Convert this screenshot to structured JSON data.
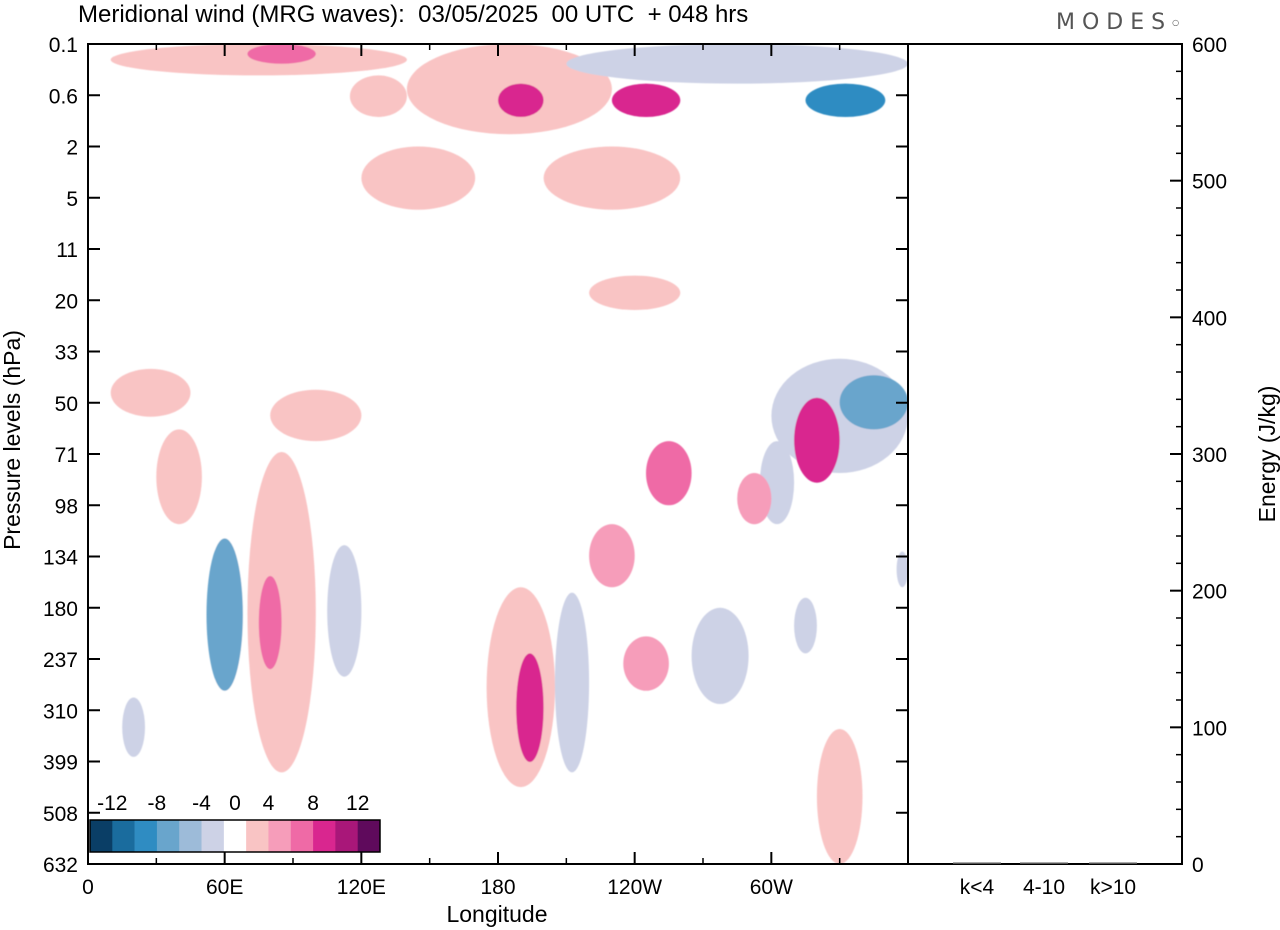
{
  "title": "Meridional wind (MRG waves):  03/05/2025  00 UTC  + 048 hrs",
  "logo": "MODES",
  "chart_data": [
    {
      "type": "heatmap",
      "title": "Meridional wind (MRG waves):  03/05/2025  00 UTC  + 048 hrs",
      "xlabel": "Longitude",
      "ylabel": "Pressure levels (hPa)",
      "x_ticks": [
        "0",
        "60E",
        "120E",
        "180",
        "120W",
        "60W"
      ],
      "x_tick_values": [
        0,
        60,
        120,
        180,
        240,
        300
      ],
      "xlim": [
        0,
        360
      ],
      "y_ticks": [
        "0.1",
        "0.6",
        "2",
        "5",
        "11",
        "20",
        "33",
        "50",
        "71",
        "98",
        "134",
        "180",
        "237",
        "310",
        "399",
        "508",
        "632"
      ],
      "y_axis": "pressure levels, top 0.1 hPa to bottom 632 hPa (levels equally spaced)",
      "colorbar": {
        "labels": [
          "-12",
          "-8",
          "-4",
          "0",
          "4",
          "8",
          "12"
        ],
        "label_values": [
          -12,
          -8,
          -4,
          0,
          4,
          8,
          12
        ],
        "boundaries": [
          -14,
          -12,
          -10,
          -8,
          -6,
          -4,
          -2,
          2,
          4,
          6,
          8,
          10,
          12,
          14
        ],
        "colors": [
          "#0a3e66",
          "#1a6c9e",
          "#2f8cc2",
          "#69a5cc",
          "#9dbbd9",
          "#cdd2e6",
          "#ffffff",
          "#f9c4c4",
          "#f69dba",
          "#ef6aa6",
          "#d9268f",
          "#a91779",
          "#5f0a5c"
        ]
      },
      "contour_regions": [
        {
          "sign": "positive",
          "level": 2,
          "lon": [
            10,
            140
          ],
          "lev": [
            0.1,
            0.3
          ]
        },
        {
          "sign": "positive",
          "level": 6,
          "lon": [
            70,
            100
          ],
          "lev": [
            0.1,
            0.2
          ]
        },
        {
          "sign": "positive",
          "level": 2,
          "lon": [
            115,
            140
          ],
          "lev": [
            0.3,
            1
          ]
        },
        {
          "sign": "positive",
          "level": 2,
          "lon": [
            140,
            230
          ],
          "lev": [
            0.1,
            1.5
          ]
        },
        {
          "sign": "positive",
          "level": 8,
          "lon": [
            180,
            200
          ],
          "lev": [
            0.4,
            1
          ]
        },
        {
          "sign": "positive",
          "level": 8,
          "lon": [
            230,
            260
          ],
          "lev": [
            0.4,
            1
          ]
        },
        {
          "sign": "positive",
          "level": 2,
          "lon": [
            120,
            170
          ],
          "lev": [
            2,
            6
          ]
        },
        {
          "sign": "positive",
          "level": 2,
          "lon": [
            200,
            260
          ],
          "lev": [
            2,
            6
          ]
        },
        {
          "sign": "negative",
          "level": -4,
          "lon": [
            210,
            360
          ],
          "lev": [
            0.1,
            0.4
          ]
        },
        {
          "sign": "negative",
          "level": -10,
          "lon": [
            315,
            350
          ],
          "lev": [
            0.4,
            1
          ]
        },
        {
          "sign": "negative",
          "level": -2,
          "lon": [
            48,
            85
          ],
          "lev": [
            0.5,
            2
          ]
        },
        {
          "sign": "negative",
          "level": -2,
          "lon": [
            290,
            360
          ],
          "lev": [
            1.5,
            5
          ]
        },
        {
          "sign": "negative",
          "level": -2,
          "lon": [
            25,
            55
          ],
          "lev": [
            4,
            8
          ]
        },
        {
          "sign": "negative",
          "level": -2,
          "lon": [
            105,
            125
          ],
          "lev": [
            7,
            13
          ]
        },
        {
          "sign": "positive",
          "level": 2,
          "lon": [
            220,
            260
          ],
          "lev": [
            15,
            22
          ]
        },
        {
          "sign": "negative",
          "level": -2,
          "lon": [
            160,
            180
          ],
          "lev": [
            18,
            24
          ]
        },
        {
          "sign": "negative",
          "level": -4,
          "lon": [
            300,
            360
          ],
          "lev": [
            35,
            80
          ]
        },
        {
          "sign": "negative",
          "level": -8,
          "lon": [
            330,
            360
          ],
          "lev": [
            40,
            60
          ]
        },
        {
          "sign": "positive",
          "level": 2,
          "lon": [
            10,
            45
          ],
          "lev": [
            38,
            55
          ]
        },
        {
          "sign": "positive",
          "level": 2,
          "lon": [
            80,
            120
          ],
          "lev": [
            45,
            65
          ]
        },
        {
          "sign": "positive",
          "level": 8,
          "lon": [
            310,
            330
          ],
          "lev": [
            48,
            85
          ]
        },
        {
          "sign": "positive",
          "level": 2,
          "lon": [
            30,
            50
          ],
          "lev": [
            60,
            110
          ]
        },
        {
          "sign": "negative",
          "level": -2,
          "lon": [
            55,
            70
          ],
          "lev": [
            60,
            450
          ]
        },
        {
          "sign": "negative",
          "level": -8,
          "lon": [
            52,
            68
          ],
          "lev": [
            120,
            280
          ]
        },
        {
          "sign": "positive",
          "level": 2,
          "lon": [
            70,
            100
          ],
          "lev": [
            70,
            420
          ]
        },
        {
          "sign": "positive",
          "level": 6,
          "lon": [
            75,
            85
          ],
          "lev": [
            150,
            250
          ]
        },
        {
          "sign": "negative",
          "level": -4,
          "lon": [
            105,
            120
          ],
          "lev": [
            125,
            260
          ]
        },
        {
          "sign": "negative",
          "level": -2,
          "lon": [
            125,
            150
          ],
          "lev": [
            70,
            95
          ]
        },
        {
          "sign": "positive",
          "level": 2,
          "lon": [
            175,
            205
          ],
          "lev": [
            160,
            450
          ]
        },
        {
          "sign": "positive",
          "level": 8,
          "lon": [
            188,
            200
          ],
          "lev": [
            230,
            400
          ]
        },
        {
          "sign": "negative",
          "level": -4,
          "lon": [
            205,
            220
          ],
          "lev": [
            165,
            420
          ]
        },
        {
          "sign": "positive",
          "level": 4,
          "lon": [
            220,
            240
          ],
          "lev": [
            110,
            160
          ]
        },
        {
          "sign": "positive",
          "level": 6,
          "lon": [
            245,
            265
          ],
          "lev": [
            65,
            98
          ]
        },
        {
          "sign": "positive",
          "level": 4,
          "lon": [
            235,
            255
          ],
          "lev": [
            210,
            280
          ]
        },
        {
          "sign": "negative",
          "level": -4,
          "lon": [
            265,
            290
          ],
          "lev": [
            180,
            300
          ]
        },
        {
          "sign": "negative",
          "level": -4,
          "lon": [
            295,
            310
          ],
          "lev": [
            65,
            110
          ]
        },
        {
          "sign": "negative",
          "level": -4,
          "lon": [
            310,
            320
          ],
          "lev": [
            170,
            230
          ]
        },
        {
          "sign": "positive",
          "level": 4,
          "lon": [
            285,
            300
          ],
          "lev": [
            80,
            110
          ]
        },
        {
          "sign": "negative",
          "level": -4,
          "lon": [
            355,
            360
          ],
          "lev": [
            130,
            160
          ]
        },
        {
          "sign": "positive",
          "level": 2,
          "lon": [
            320,
            340
          ],
          "lev": [
            340,
            632
          ]
        },
        {
          "sign": "negative",
          "level": -4,
          "lon": [
            15,
            25
          ],
          "lev": [
            290,
            390
          ]
        }
      ]
    },
    {
      "type": "bar",
      "categories": [
        "k<4",
        "4-10",
        "k>10"
      ],
      "values": [
        0,
        0,
        0
      ],
      "ylabel": "Energy (J/kg)",
      "ylim": [
        0,
        600
      ],
      "y_ticks": [
        "0",
        "100",
        "200",
        "300",
        "400",
        "500",
        "600"
      ],
      "y_tick_values": [
        0,
        100,
        200,
        300,
        400,
        500,
        600
      ]
    }
  ]
}
